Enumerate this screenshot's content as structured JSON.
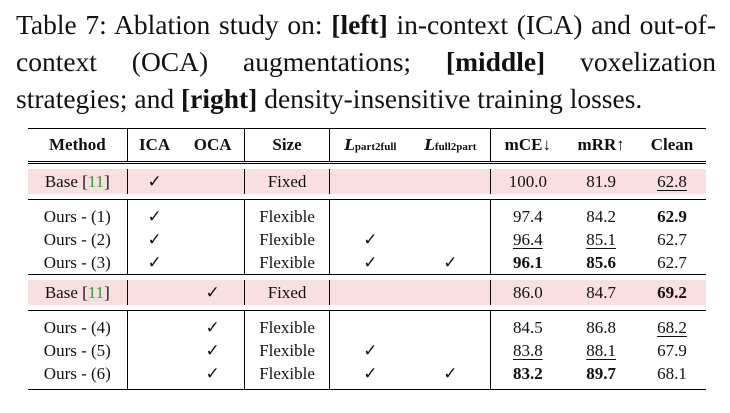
{
  "caption": {
    "label": "Table 7:",
    "part1": " Ablation study on: ",
    "left": "[left]",
    "part2": " in-context (ICA) and out-of-context (OCA) augmentations; ",
    "middle": "[middle]",
    "part3": " voxelization strategies; and ",
    "right": "[right]",
    "part4": " density-insensitive training losses."
  },
  "headers": {
    "method": "Method",
    "ica": "ICA",
    "oca": "OCA",
    "size": "Size",
    "loss1_main": "L",
    "loss1_sub": "part2full",
    "loss2_main": "L",
    "loss2_sub": "full2part",
    "mce": "mCE↓",
    "mrr": "mRR↑",
    "clean": "Clean"
  },
  "rows": [
    {
      "method": "Base [",
      "cite": "11",
      "close": "]",
      "ica": "✓",
      "oca": "",
      "size": "Fixed",
      "l1": "",
      "l2": "",
      "mce": "100.0",
      "mrr": "81.9",
      "clean": "62.8"
    },
    {
      "method": "Ours - (1)",
      "ica": "✓",
      "oca": "",
      "size": "Flexible",
      "l1": "",
      "l2": "",
      "mce": "97.4",
      "mrr": "84.2",
      "clean": "62.9"
    },
    {
      "method": "Ours - (2)",
      "ica": "✓",
      "oca": "",
      "size": "Flexible",
      "l1": "✓",
      "l2": "",
      "mce": "96.4",
      "mrr": "85.1",
      "clean": "62.7"
    },
    {
      "method": "Ours - (3)",
      "ica": "✓",
      "oca": "",
      "size": "Flexible",
      "l1": "✓",
      "l2": "✓",
      "mce": "96.1",
      "mrr": "85.6",
      "clean": "62.7"
    },
    {
      "method": "Base [",
      "cite": "11",
      "close": "]",
      "ica": "",
      "oca": "✓",
      "size": "Fixed",
      "l1": "",
      "l2": "",
      "mce": "86.0",
      "mrr": "84.7",
      "clean": "69.2"
    },
    {
      "method": "Ours - (4)",
      "ica": "",
      "oca": "✓",
      "size": "Flexible",
      "l1": "",
      "l2": "",
      "mce": "84.5",
      "mrr": "86.8",
      "clean": "68.2"
    },
    {
      "method": "Ours - (5)",
      "ica": "",
      "oca": "✓",
      "size": "Flexible",
      "l1": "✓",
      "l2": "",
      "mce": "83.8",
      "mrr": "88.1",
      "clean": "67.9"
    },
    {
      "method": "Ours - (6)",
      "ica": "",
      "oca": "✓",
      "size": "Flexible",
      "l1": "✓",
      "l2": "✓",
      "mce": "83.2",
      "mrr": "89.7",
      "clean": "68.1"
    }
  ]
}
